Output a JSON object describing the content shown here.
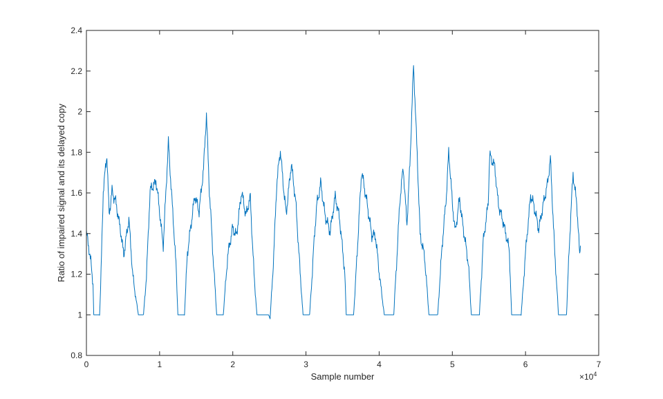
{
  "chart_data": {
    "type": "line",
    "title": "",
    "xlabel": "Sample number",
    "ylabel": "Ratio of impaired signal and its delayed copy",
    "x_exponent_label": "×10",
    "x_exponent_power": "4",
    "xlim": [
      0,
      70000
    ],
    "ylim": [
      0.8,
      2.4
    ],
    "x_ticks": [
      0,
      10000,
      20000,
      30000,
      40000,
      50000,
      60000,
      70000
    ],
    "x_tick_labels": [
      "0",
      "1",
      "2",
      "3",
      "4",
      "5",
      "6",
      "7"
    ],
    "y_ticks": [
      0.8,
      1.0,
      1.2,
      1.4,
      1.6,
      1.8,
      2.0,
      2.2,
      2.4
    ],
    "y_tick_labels": [
      "0.8",
      "1",
      "1.2",
      "1.4",
      "1.6",
      "1.8",
      "2",
      "2.2",
      "2.4"
    ],
    "grid": false,
    "series": [
      {
        "color": "#0072BD",
        "points": [
          [
            0,
            1.4
          ],
          [
            300,
            1.33
          ],
          [
            600,
            1.25
          ],
          [
            900,
            1.15
          ],
          [
            1000,
            1.0
          ],
          [
            1800,
            1.0
          ],
          [
            2000,
            1.2
          ],
          [
            2300,
            1.6
          ],
          [
            2800,
            1.8
          ],
          [
            3100,
            1.5
          ],
          [
            3500,
            1.62
          ],
          [
            4000,
            1.55
          ],
          [
            4700,
            1.4
          ],
          [
            5100,
            1.3
          ],
          [
            5800,
            1.48
          ],
          [
            6300,
            1.2
          ],
          [
            7100,
            1.0
          ],
          [
            7800,
            1.0
          ],
          [
            8200,
            1.2
          ],
          [
            8700,
            1.6
          ],
          [
            9500,
            1.67
          ],
          [
            10000,
            1.5
          ],
          [
            10500,
            1.35
          ],
          [
            11200,
            1.86
          ],
          [
            11800,
            1.5
          ],
          [
            12300,
            1.2
          ],
          [
            12500,
            1.0
          ],
          [
            13400,
            1.0
          ],
          [
            13800,
            1.3
          ],
          [
            14800,
            1.58
          ],
          [
            15400,
            1.5
          ],
          [
            16000,
            1.72
          ],
          [
            16400,
            1.98
          ],
          [
            16800,
            1.6
          ],
          [
            17300,
            1.3
          ],
          [
            17800,
            1.0
          ],
          [
            18700,
            1.0
          ],
          [
            19300,
            1.3
          ],
          [
            20000,
            1.44
          ],
          [
            20500,
            1.38
          ],
          [
            21200,
            1.6
          ],
          [
            21800,
            1.48
          ],
          [
            22400,
            1.58
          ],
          [
            22900,
            1.2
          ],
          [
            23300,
            1.0
          ],
          [
            24900,
            1.0
          ],
          [
            25100,
            0.98
          ],
          [
            25600,
            1.3
          ],
          [
            26000,
            1.65
          ],
          [
            26500,
            1.8
          ],
          [
            27300,
            1.5
          ],
          [
            28000,
            1.75
          ],
          [
            28600,
            1.55
          ],
          [
            29200,
            1.2
          ],
          [
            29600,
            1.0
          ],
          [
            30500,
            1.0
          ],
          [
            31000,
            1.3
          ],
          [
            31500,
            1.55
          ],
          [
            32000,
            1.65
          ],
          [
            32600,
            1.48
          ],
          [
            33300,
            1.4
          ],
          [
            34000,
            1.58
          ],
          [
            34600,
            1.46
          ],
          [
            35300,
            1.2
          ],
          [
            35500,
            1.0
          ],
          [
            36500,
            1.0
          ],
          [
            37000,
            1.3
          ],
          [
            37600,
            1.7
          ],
          [
            38300,
            1.55
          ],
          [
            39000,
            1.38
          ],
          [
            39500,
            1.4
          ],
          [
            40000,
            1.2
          ],
          [
            40700,
            1.0
          ],
          [
            42000,
            1.0
          ],
          [
            42800,
            1.55
          ],
          [
            43300,
            1.72
          ],
          [
            43800,
            1.45
          ],
          [
            44200,
            1.75
          ],
          [
            44700,
            2.22
          ],
          [
            45200,
            1.8
          ],
          [
            45600,
            1.4
          ],
          [
            46200,
            1.3
          ],
          [
            46800,
            1.0
          ],
          [
            48000,
            1.0
          ],
          [
            48600,
            1.35
          ],
          [
            49200,
            1.6
          ],
          [
            49500,
            1.8
          ],
          [
            50000,
            1.55
          ],
          [
            50400,
            1.4
          ],
          [
            51000,
            1.58
          ],
          [
            51500,
            1.42
          ],
          [
            52200,
            1.25
          ],
          [
            52600,
            1.0
          ],
          [
            53700,
            1.0
          ],
          [
            54200,
            1.35
          ],
          [
            54900,
            1.55
          ],
          [
            55100,
            1.78
          ],
          [
            55800,
            1.72
          ],
          [
            56300,
            1.55
          ],
          [
            57000,
            1.46
          ],
          [
            57800,
            1.3
          ],
          [
            58100,
            1.0
          ],
          [
            59400,
            1.0
          ],
          [
            59900,
            1.25
          ],
          [
            60700,
            1.6
          ],
          [
            61100,
            1.55
          ],
          [
            61800,
            1.42
          ],
          [
            62400,
            1.55
          ],
          [
            63000,
            1.65
          ],
          [
            63400,
            1.78
          ],
          [
            64000,
            1.3
          ],
          [
            64500,
            1.0
          ],
          [
            65600,
            1.0
          ],
          [
            66000,
            1.35
          ],
          [
            66500,
            1.7
          ],
          [
            67000,
            1.55
          ],
          [
            67400,
            1.3
          ],
          [
            67500,
            1.34
          ]
        ]
      }
    ]
  }
}
